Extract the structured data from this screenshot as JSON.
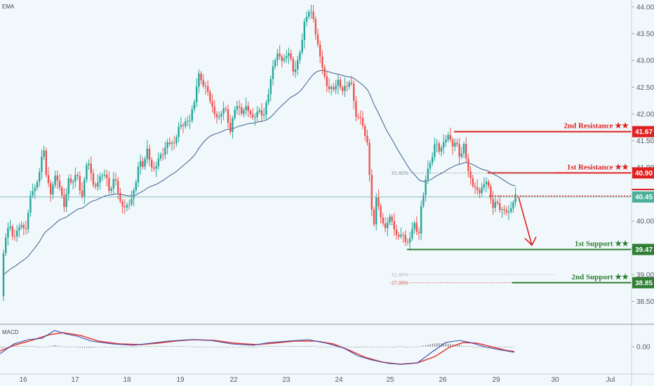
{
  "chart_data": [
    {
      "type": "candlestick",
      "indicator_label": "EMA",
      "ylim": [
        38.1,
        44.05
      ],
      "x_ticks": [
        "16",
        "17",
        "18",
        "19",
        "22",
        "23",
        "24",
        "25",
        "26",
        "29",
        "30",
        "Jul"
      ],
      "y_ticks": [
        "44.00",
        "43.50",
        "43.00",
        "42.50",
        "42.00",
        "41.50",
        "41.00",
        "40.50",
        "40.00",
        "39.50",
        "39.00",
        "38.50"
      ],
      "current_price": "40.45",
      "grid": false,
      "levels": [
        {
          "name": "2nd Resistance ★★",
          "value": 41.67,
          "tag": "41.67",
          "color": "#e02020"
        },
        {
          "name": "1st Resistance ★★",
          "value": 40.9,
          "tag": "40.90",
          "color": "#e02020"
        },
        {
          "name": "1st Support ★★",
          "value": 39.47,
          "tag": "39.47",
          "color": "#2e7d32"
        },
        {
          "name": "2nd Support ★★",
          "value": 38.85,
          "tag": "38.85",
          "color": "#2e7d32"
        }
      ],
      "fib_labels": [
        {
          "label": "61.80%",
          "value": 40.9
        },
        {
          "label": "61.80%",
          "value": 39.0
        },
        {
          "label": "-27.00%",
          "value": 38.85
        }
      ],
      "colors": {
        "up": "#26a69a",
        "down": "#ef5350",
        "ema": "#3f5f8f",
        "resistance": "#e02020",
        "support": "#2e7d32"
      }
    },
    {
      "type": "line",
      "indicator_label": "MACD",
      "y_ticks": [
        "0.00"
      ],
      "series": [],
      "colors": {
        "macd": "#3949ab",
        "signal": "#e53935",
        "histogram": "#7a7a7a"
      }
    }
  ]
}
